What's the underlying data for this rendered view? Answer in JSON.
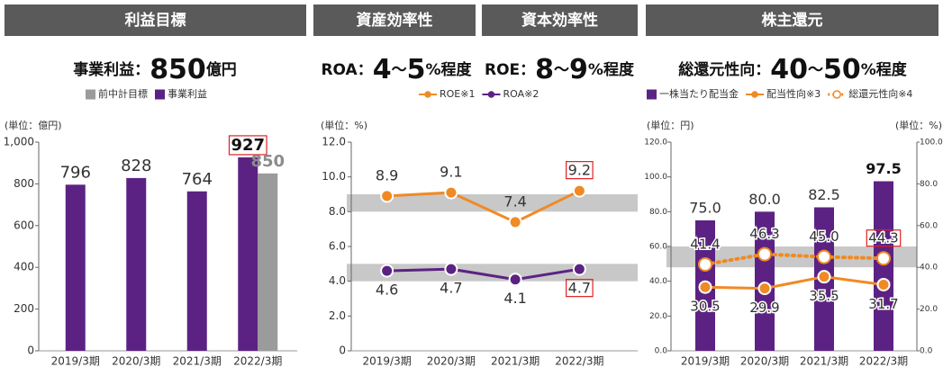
{
  "headers": [
    "利益目標",
    "資産効率性",
    "資本効率性",
    "株主還元"
  ],
  "targets": [
    [
      {
        "text": "事業利益：",
        "size": "m"
      },
      {
        "text": "850",
        "size": "l"
      },
      {
        "text": "億円",
        "size": "m"
      }
    ],
    [
      {
        "text": "ROA：",
        "size": "m"
      },
      {
        "text": "4",
        "size": "l"
      },
      {
        "text": "～",
        "size": "m"
      },
      {
        "text": "5",
        "size": "l"
      },
      {
        "text": "%程度",
        "size": "m"
      }
    ],
    [
      {
        "text": "ROE：",
        "size": "m"
      },
      {
        "text": "8",
        "size": "l"
      },
      {
        "text": "～",
        "size": "m"
      },
      {
        "text": "9",
        "size": "l"
      },
      {
        "text": "%程度",
        "size": "m"
      }
    ],
    [
      {
        "text": "総還元性向：",
        "size": "m"
      },
      {
        "text": "40",
        "size": "l"
      },
      {
        "text": "～",
        "size": "m"
      },
      {
        "text": "50",
        "size": "l"
      },
      {
        "text": "%程度",
        "size": "m"
      }
    ]
  ],
  "chart_data": [
    {
      "type": "bar",
      "unit_label": "(単位：億円)",
      "categories": [
        "2019/3期",
        "2020/3期",
        "2021/3期",
        "2022/3期"
      ],
      "series": [
        {
          "name": "前中計目標",
          "color": "#9b9b9b",
          "label_color": "#8c8c8c",
          "values": [
            null,
            null,
            null,
            850
          ],
          "emphasis": [
            3
          ]
        },
        {
          "name": "事業利益",
          "color": "#5c2283",
          "values": [
            796,
            828,
            764,
            927
          ],
          "emphasis": [
            3
          ],
          "boxed": [
            3
          ]
        }
      ],
      "ylim": [
        0,
        1000
      ],
      "yticks": [
        0,
        200,
        400,
        600,
        800,
        {
          "value": 1000,
          "label": "1,000"
        }
      ]
    },
    {
      "type": "line",
      "unit_label": "(単位：%)",
      "categories": [
        "2019/3期",
        "2020/3期",
        "2021/3期",
        "2022/3期"
      ],
      "series": [
        {
          "name": "ROE※1",
          "color": "#f08a24",
          "values": [
            8.9,
            9.1,
            7.4,
            9.2
          ],
          "label_pos": "above",
          "boxed": [
            3
          ]
        },
        {
          "name": "ROA※2",
          "color": "#5c2283",
          "values": [
            4.6,
            4.7,
            4.1,
            4.7
          ],
          "label_pos": "below",
          "boxed": [
            3
          ]
        }
      ],
      "bands": [
        {
          "from": 8,
          "to": 9
        },
        {
          "from": 4,
          "to": 5
        }
      ],
      "ylim": [
        0,
        12
      ],
      "yticks": [
        0,
        {
          "value": 2,
          "label": "2.0"
        },
        {
          "value": 4,
          "label": "4.0"
        },
        {
          "value": 6,
          "label": "6.0"
        },
        {
          "value": 8,
          "label": "8.0"
        },
        {
          "value": 10,
          "label": "10.0"
        },
        {
          "value": 12,
          "label": "12.0"
        }
      ]
    },
    {
      "type": "combo",
      "unit_label": "(単位：円)",
      "unit_label_right": "(単位：%)",
      "categories": [
        "2019/3期",
        "2020/3期",
        "2021/3期",
        "2022/3期"
      ],
      "series": [
        {
          "name": "一株当たり配当金",
          "type": "bar",
          "color": "#5c2283",
          "values": [
            75,
            80,
            82.5,
            97.5
          ],
          "value_labels": [
            "75.0",
            "80.0",
            "82.5",
            "97.5"
          ],
          "emphasis": [
            3
          ]
        },
        {
          "name": "配当性向※3",
          "type": "line",
          "axis": "y2",
          "color": "#f08a24",
          "values": [
            30.5,
            29.9,
            35.5,
            31.7
          ],
          "label_pos": "below"
        },
        {
          "name": "総還元性向※4",
          "type": "line",
          "axis": "y2",
          "color": "#f08a24",
          "dash": "dotted",
          "marker": "hollow",
          "values": [
            41.4,
            46.3,
            45.0,
            44.3
          ],
          "value_labels": [
            "41.4",
            "46.3",
            "45.0",
            "44.3"
          ],
          "label_pos": "above",
          "boxed": [
            3
          ]
        }
      ],
      "bands": [
        {
          "from": 40,
          "to": 50,
          "axis": "y2"
        }
      ],
      "ylim": [
        0,
        120
      ],
      "yticks": [
        {
          "value": 0,
          "label": "0.0"
        },
        {
          "value": 20,
          "label": "20.0"
        },
        {
          "value": 40,
          "label": "40.0"
        },
        {
          "value": 60,
          "label": "60.0"
        },
        {
          "value": 80,
          "label": "80.0"
        },
        {
          "value": 100,
          "label": "100.0"
        },
        {
          "value": 120,
          "label": "120.0"
        }
      ],
      "y2lim": [
        0,
        100
      ],
      "y2ticks": [
        {
          "value": 0,
          "label": "0.0"
        },
        {
          "value": 20,
          "label": "20.0"
        },
        {
          "value": 40,
          "label": "40.0"
        },
        {
          "value": 60,
          "label": "60.0"
        },
        {
          "value": 80,
          "label": "80.0"
        },
        {
          "value": 100,
          "label": "100.0"
        }
      ]
    }
  ]
}
